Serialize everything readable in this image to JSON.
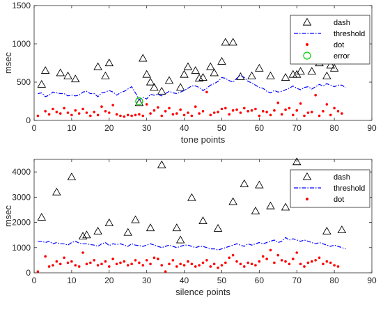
{
  "colors": {
    "dash": "#000000",
    "threshold": "#0000ff",
    "dot": "#ff0000",
    "error": "#00cc00",
    "axes": "#262626"
  },
  "chart_data": [
    {
      "type": "scatter",
      "xlabel": "tone points",
      "ylabel": "msec",
      "xlim": [
        0,
        90
      ],
      "ylim": [
        0,
        1500
      ],
      "xticks": [
        0,
        10,
        20,
        30,
        40,
        50,
        60,
        70,
        80,
        90
      ],
      "yticks": [
        0,
        500,
        1000,
        1500
      ],
      "grid": false,
      "legend_position": "top-right",
      "series": [
        {
          "name": "dash",
          "marker": "triangle",
          "x": [
            2,
            3,
            7,
            9,
            11,
            17,
            19,
            20,
            28,
            29,
            30,
            31,
            32,
            34,
            36,
            39,
            40,
            41,
            43,
            44,
            45,
            47,
            48,
            50,
            51,
            53,
            55,
            58,
            60,
            63,
            67,
            69,
            70,
            71,
            74,
            76,
            78,
            79,
            80
          ],
          "y": [
            470,
            650,
            620,
            580,
            540,
            700,
            580,
            750,
            230,
            810,
            600,
            500,
            430,
            380,
            520,
            430,
            600,
            700,
            650,
            550,
            560,
            700,
            620,
            770,
            1020,
            1020,
            570,
            580,
            680,
            580,
            560,
            600,
            600,
            640,
            640,
            750,
            580,
            720,
            680
          ]
        },
        {
          "name": "threshold",
          "marker": "dash-dot-line",
          "x": [
            1,
            2,
            3,
            4,
            5,
            6,
            7,
            8,
            9,
            10,
            11,
            12,
            13,
            14,
            15,
            16,
            17,
            18,
            19,
            20,
            21,
            22,
            23,
            24,
            25,
            26,
            27,
            28,
            29,
            30,
            31,
            32,
            33,
            34,
            35,
            36,
            37,
            38,
            39,
            40,
            41,
            42,
            43,
            44,
            45,
            46,
            47,
            48,
            49,
            50,
            51,
            52,
            53,
            54,
            55,
            56,
            57,
            58,
            59,
            60,
            61,
            62,
            63,
            64,
            65,
            66,
            67,
            68,
            69,
            70,
            71,
            72,
            73,
            74,
            75,
            76,
            77,
            78,
            79,
            80,
            81,
            82,
            83
          ],
          "y": [
            350,
            360,
            310,
            330,
            370,
            360,
            350,
            350,
            320,
            330,
            320,
            330,
            370,
            380,
            350,
            350,
            310,
            360,
            370,
            390,
            370,
            330,
            360,
            380,
            410,
            440,
            360,
            270,
            300,
            280,
            340,
            330,
            340,
            320,
            350,
            380,
            360,
            350,
            370,
            390,
            420,
            450,
            450,
            430,
            390,
            420,
            460,
            480,
            510,
            560,
            550,
            520,
            500,
            550,
            590,
            560,
            510,
            490,
            460,
            430,
            420,
            380,
            360,
            390,
            370,
            380,
            400,
            420,
            450,
            420,
            400,
            430,
            440,
            410,
            440,
            470,
            450,
            480,
            460,
            440,
            460,
            460,
            430
          ]
        },
        {
          "name": "dot",
          "marker": "dot",
          "x": [
            1,
            3,
            4,
            5,
            6,
            7,
            8,
            9,
            10,
            11,
            12,
            13,
            14,
            15,
            16,
            17,
            18,
            19,
            20,
            21,
            22,
            23,
            24,
            25,
            26,
            27,
            28,
            29,
            30,
            31,
            32,
            33,
            34,
            35,
            36,
            37,
            38,
            39,
            40,
            41,
            42,
            43,
            44,
            45,
            46,
            47,
            48,
            49,
            50,
            51,
            52,
            53,
            54,
            55,
            56,
            57,
            58,
            59,
            60,
            61,
            62,
            63,
            64,
            65,
            66,
            67,
            68,
            69,
            70,
            71,
            72,
            73,
            74,
            75,
            76,
            77,
            78,
            79,
            80,
            81,
            82
          ],
          "y": [
            60,
            120,
            80,
            150,
            110,
            90,
            160,
            100,
            70,
            130,
            90,
            150,
            100,
            60,
            110,
            70,
            180,
            120,
            100,
            200,
            80,
            60,
            50,
            70,
            60,
            70,
            80,
            60,
            210,
            90,
            130,
            170,
            60,
            120,
            160,
            80,
            90,
            140,
            70,
            100,
            60,
            180,
            90,
            120,
            370,
            70,
            100,
            110,
            150,
            160,
            80,
            130,
            140,
            100,
            160,
            120,
            130,
            150,
            60,
            120,
            110,
            70,
            130,
            230,
            80,
            140,
            160,
            70,
            130,
            220,
            60,
            100,
            110,
            330,
            60,
            120,
            210,
            70,
            160,
            120,
            90
          ]
        },
        {
          "name": "error",
          "marker": "circle",
          "x": [
            28
          ],
          "y": [
            250
          ]
        }
      ]
    },
    {
      "type": "scatter",
      "xlabel": "silence points",
      "ylabel": "msec",
      "xlim": [
        0,
        90
      ],
      "ylim": [
        0,
        4500
      ],
      "xticks": [
        0,
        10,
        20,
        30,
        40,
        50,
        60,
        70,
        80,
        90
      ],
      "yticks": [
        0,
        1000,
        2000,
        3000,
        4000
      ],
      "grid": false,
      "legend_position": "top-right",
      "series": [
        {
          "name": "dash",
          "marker": "triangle",
          "x": [
            2,
            6,
            10,
            13,
            14,
            17,
            20,
            25,
            27,
            31,
            34,
            38,
            39,
            42,
            45,
            49,
            53,
            56,
            59,
            60,
            63,
            67,
            70,
            78,
            82
          ],
          "y": [
            2200,
            3200,
            3800,
            1450,
            1500,
            1650,
            1980,
            1600,
            2100,
            1780,
            4280,
            1780,
            1300,
            2980,
            2060,
            1760,
            2820,
            3530,
            2450,
            3480,
            2650,
            2600,
            4400,
            1650,
            1700
          ]
        },
        {
          "name": "threshold",
          "marker": "dash-dot-line",
          "x": [
            1,
            2,
            3,
            4,
            5,
            6,
            7,
            8,
            9,
            10,
            11,
            12,
            13,
            14,
            15,
            16,
            17,
            18,
            19,
            20,
            21,
            22,
            23,
            24,
            25,
            26,
            27,
            28,
            29,
            30,
            31,
            32,
            33,
            34,
            35,
            36,
            37,
            38,
            39,
            40,
            41,
            42,
            43,
            44,
            45,
            46,
            47,
            48,
            49,
            50,
            51,
            52,
            53,
            54,
            55,
            56,
            57,
            58,
            59,
            60,
            61,
            62,
            63,
            64,
            65,
            66,
            67,
            68,
            69,
            70,
            71,
            72,
            73,
            74,
            75,
            76,
            77,
            78,
            79,
            80,
            81,
            82,
            83
          ],
          "y": [
            1250,
            1250,
            1200,
            1250,
            1150,
            1200,
            1150,
            1150,
            1100,
            1200,
            1250,
            1180,
            1150,
            1150,
            1120,
            1100,
            1050,
            1150,
            1200,
            1080,
            1150,
            1120,
            1150,
            1100,
            1050,
            1150,
            1100,
            1080,
            1050,
            1100,
            1150,
            1100,
            1050,
            1000,
            1050,
            1100,
            1050,
            1000,
            1050,
            1100,
            1100,
            1050,
            1000,
            1050,
            1050,
            1000,
            950,
            950,
            900,
            950,
            1000,
            1050,
            1100,
            1150,
            1100,
            1050,
            1150,
            1100,
            1150,
            1200,
            1150,
            1200,
            1250,
            1300,
            1200,
            1250,
            1400,
            1300,
            1350,
            1300,
            1250,
            1300,
            1250,
            1200,
            1150,
            1200,
            1150,
            1100,
            1050,
            1100,
            1050,
            1000,
            950
          ]
        },
        {
          "name": "dot",
          "marker": "dot",
          "x": [
            1,
            3,
            4,
            5,
            6,
            7,
            8,
            9,
            10,
            11,
            12,
            13,
            14,
            15,
            16,
            17,
            18,
            19,
            20,
            21,
            22,
            23,
            24,
            25,
            26,
            27,
            28,
            29,
            30,
            31,
            32,
            33,
            34,
            35,
            36,
            37,
            38,
            39,
            40,
            41,
            42,
            43,
            44,
            45,
            46,
            47,
            48,
            49,
            50,
            51,
            52,
            53,
            54,
            55,
            56,
            57,
            58,
            59,
            60,
            61,
            62,
            63,
            64,
            65,
            66,
            67,
            68,
            69,
            70,
            71,
            72,
            73,
            74,
            75,
            76,
            77,
            78,
            79,
            80,
            81
          ],
          "y": [
            50,
            650,
            250,
            300,
            450,
            350,
            600,
            400,
            450,
            300,
            250,
            800,
            350,
            400,
            500,
            300,
            350,
            450,
            250,
            550,
            350,
            400,
            450,
            300,
            350,
            500,
            400,
            300,
            500,
            350,
            600,
            550,
            300,
            50,
            350,
            500,
            250,
            350,
            300,
            450,
            350,
            250,
            300,
            400,
            500,
            250,
            350,
            200,
            300,
            400,
            600,
            700,
            450,
            350,
            250,
            400,
            350,
            300,
            450,
            650,
            550,
            900,
            400,
            700,
            500,
            450,
            350,
            550,
            800,
            350,
            250,
            400,
            450,
            500,
            600,
            350,
            450,
            400,
            300,
            250
          ]
        }
      ]
    }
  ]
}
